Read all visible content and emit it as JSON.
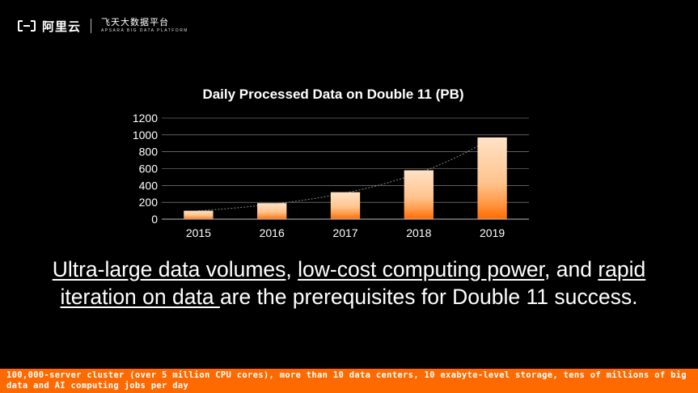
{
  "brand": {
    "name": "阿里云",
    "sub_cn": "飞天大数据平台",
    "sub_en": "APSARA BIG DATA PLATFORM"
  },
  "chart_data": {
    "type": "bar",
    "title": "Daily Processed Data on Double 11 (PB)",
    "categories": [
      "2015",
      "2016",
      "2017",
      "2018",
      "2019"
    ],
    "values": [
      100,
      190,
      320,
      580,
      970
    ],
    "ylim": [
      0,
      1200
    ],
    "yticks": [
      0,
      200,
      400,
      600,
      800,
      1000,
      1200
    ],
    "grid": true,
    "trendline": "exponential",
    "colors": {
      "bar_top": "#ffe2c6",
      "bar_mid": "#ffc48e",
      "bar_bottom": "#ff6a00",
      "grid": "#9a9a9a",
      "plot_bg": "#000000",
      "text": "#ffffff"
    }
  },
  "caption": {
    "part1": "Ultra-large data volumes",
    "part2": ", ",
    "part3": "low-cost computing power",
    "part4": ", and ",
    "part5": "rapid",
    "part6": "iteration on data ",
    "part7": "are the prerequisites for Double 11 success."
  },
  "footer": {
    "text": "100,000-server cluster (over 5 million CPU cores), more than 10 data centers, 10 exabyte-level storage, tens of millions of big data and AI computing jobs per day"
  },
  "colors": {
    "accent": "#ff6a00",
    "background": "#000000"
  }
}
